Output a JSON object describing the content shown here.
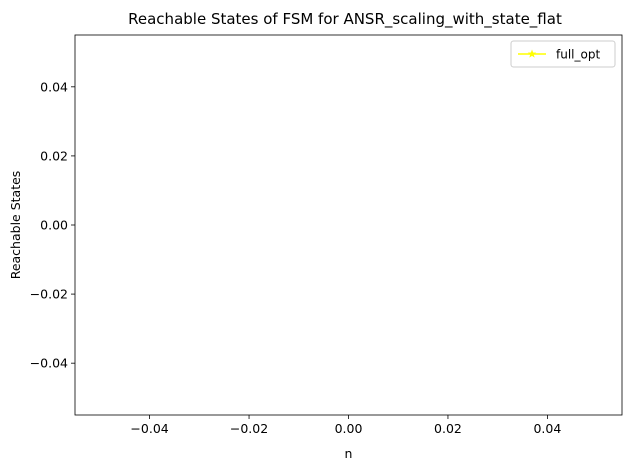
{
  "chart_data": {
    "type": "line",
    "title": "Reachable States of FSM for ANSR_scaling_with_state_flat",
    "xlabel": "n",
    "ylabel": "Reachable States",
    "xlim": [
      -0.055,
      0.055
    ],
    "ylim": [
      -0.055,
      0.055
    ],
    "xticks": [
      -0.04,
      -0.02,
      0.0,
      0.02,
      0.04
    ],
    "xtick_labels": [
      "−0.04",
      "−0.02",
      "0.00",
      "0.02",
      "0.04"
    ],
    "yticks": [
      -0.04,
      -0.02,
      0.0,
      0.02,
      0.04
    ],
    "ytick_labels": [
      "−0.04",
      "−0.02",
      "0.00",
      "0.02",
      "0.04"
    ],
    "grid": false,
    "legend_position": "upper right",
    "series": [
      {
        "name": "full_opt",
        "color": "#ffff00",
        "marker": "star",
        "x": [],
        "y": []
      }
    ]
  }
}
